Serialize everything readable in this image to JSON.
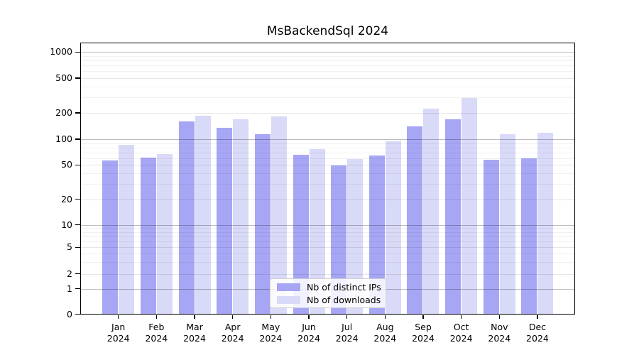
{
  "title": "MsBackendSql 2024",
  "chart_data": {
    "type": "bar",
    "title": "MsBackendSql 2024",
    "categories": [
      "Jan",
      "Feb",
      "Mar",
      "Apr",
      "May",
      "Jun",
      "Jul",
      "Aug",
      "Sep",
      "Oct",
      "Nov",
      "Dec"
    ],
    "category_year": "2024",
    "series": [
      {
        "name": "Nb of distinct IPs",
        "color": "#a6a6f5",
        "values": [
          56,
          61,
          161,
          135,
          113,
          66,
          49,
          65,
          140,
          168,
          57,
          60
        ]
      },
      {
        "name": "Nb of downloads",
        "color": "#d9d9f8",
        "values": [
          86,
          67,
          186,
          170,
          181,
          76,
          59,
          94,
          222,
          297,
          113,
          119
        ]
      }
    ],
    "yscale": "symlog",
    "ytick_values": [
      0,
      1,
      2,
      5,
      10,
      20,
      50,
      100,
      200,
      500,
      1000
    ],
    "ytick_labels": [
      "0",
      "1",
      "2",
      "5",
      "10",
      "20",
      "50",
      "100",
      "200",
      "500",
      "1000"
    ],
    "ylim": [
      0,
      1300
    ],
    "grid": true,
    "legend": {
      "position": "lower center",
      "labels": [
        "Nb of distinct IPs",
        "Nb of downloads"
      ]
    }
  }
}
